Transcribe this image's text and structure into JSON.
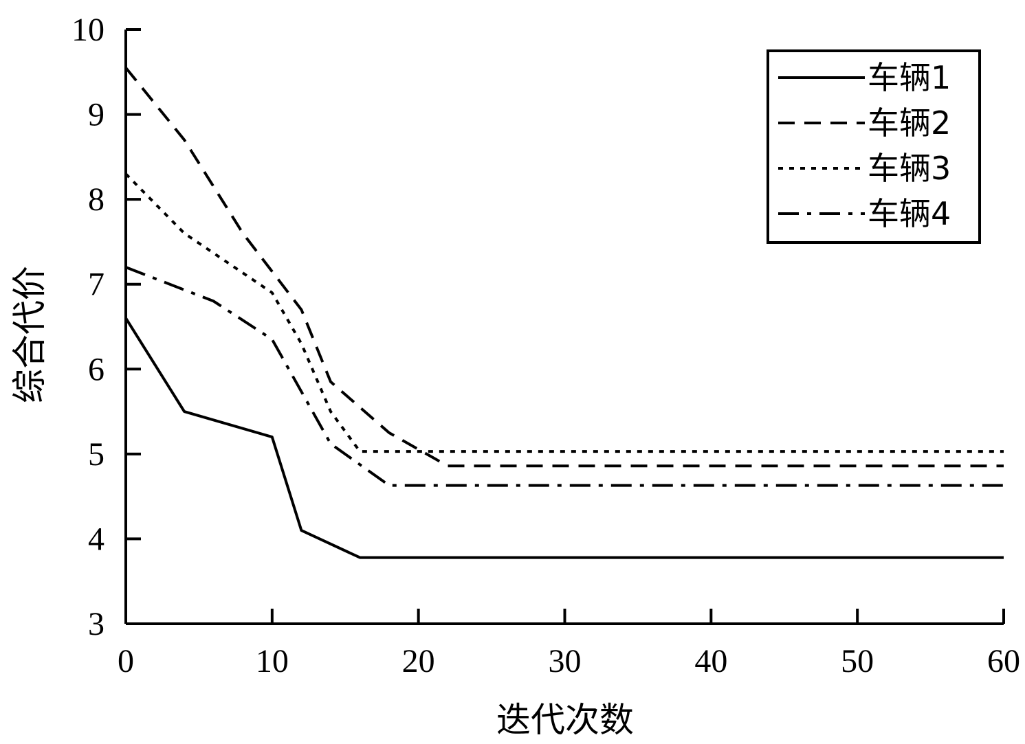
{
  "chart_data": {
    "type": "line",
    "title": "",
    "xlabel": "迭代次数",
    "ylabel": "综合代价",
    "xlim": [
      0,
      60
    ],
    "ylim": [
      3,
      10
    ],
    "xticks": [
      0,
      10,
      20,
      30,
      40,
      50,
      60
    ],
    "yticks": [
      3,
      4,
      5,
      6,
      7,
      8,
      9,
      10
    ],
    "grid": false,
    "legend_position": "top-right",
    "series": [
      {
        "name": "车辆1",
        "style": "solid",
        "x": [
          0,
          4,
          10,
          12,
          16,
          60
        ],
        "y": [
          6.6,
          5.5,
          5.2,
          4.1,
          3.78,
          3.78
        ]
      },
      {
        "name": "车辆2",
        "style": "dashed",
        "x": [
          0,
          4,
          8,
          12,
          14,
          18,
          22,
          60
        ],
        "y": [
          9.55,
          8.7,
          7.6,
          6.7,
          5.85,
          5.25,
          4.86,
          4.86
        ]
      },
      {
        "name": "车辆3",
        "style": "dotted",
        "x": [
          0,
          4,
          10,
          12,
          14,
          16,
          60
        ],
        "y": [
          8.3,
          7.6,
          6.9,
          6.3,
          5.5,
          5.03,
          5.03
        ]
      },
      {
        "name": "车辆4",
        "style": "dashdot",
        "x": [
          0,
          6,
          10,
          14,
          18,
          60
        ],
        "y": [
          7.2,
          6.8,
          6.35,
          5.12,
          4.63,
          4.63
        ]
      }
    ]
  }
}
